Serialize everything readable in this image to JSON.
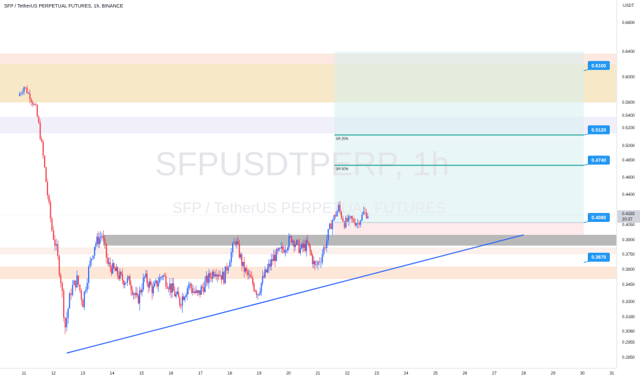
{
  "header": {
    "symbol_title": "SFP / TetherUS PERPETUAL FUTURES, 1h, BINANCE",
    "unit": "USDT"
  },
  "watermark": {
    "ticker": "SFPUSDTPERP, 1h",
    "name": "SFP / TetherUS PERPETUAL FUTURES"
  },
  "chart_data": {
    "type": "candlestick",
    "title": "SFP / TetherUS PERPETUAL FUTURES, 1h, BINANCE",
    "x_ticks": [
      "11",
      "12",
      "13",
      "14",
      "15",
      "16",
      "17",
      "18",
      "19",
      "20",
      "21",
      "22",
      "23",
      "24",
      "25",
      "26",
      "27",
      "28",
      "29",
      "30",
      "31"
    ],
    "y_ticks": [
      0.68,
      0.64,
      0.6,
      0.56,
      0.54,
      0.52,
      0.5,
      0.48,
      0.46,
      0.44,
      0.4192,
      0.405,
      0.39,
      0.375,
      0.36,
      0.345,
      0.33,
      0.318,
      0.306,
      0.2955,
      0.285
    ],
    "y_tick_labels": [
      "0.6800",
      "0.6400",
      "0.6000",
      "0.5600",
      "0.5400",
      "0.5200",
      "0.5000",
      "0.4800",
      "0.4600",
      "0.4400",
      "0.4192",
      "0.4050",
      "0.3900",
      "0.3750",
      "0.3600",
      "0.3450",
      "0.3300",
      "0.3180",
      "0.3060",
      "0.2955",
      "0.2850"
    ],
    "last_price": {
      "value": "0.4192",
      "countdown": "20:37"
    },
    "price_path": [
      {
        "day": 10.8,
        "price": 0.57
      },
      {
        "day": 11.0,
        "price": 0.585
      },
      {
        "day": 11.2,
        "price": 0.57
      },
      {
        "day": 11.4,
        "price": 0.55
      },
      {
        "day": 11.6,
        "price": 0.5
      },
      {
        "day": 11.8,
        "price": 0.44
      },
      {
        "day": 11.95,
        "price": 0.4
      },
      {
        "day": 12.1,
        "price": 0.38
      },
      {
        "day": 12.25,
        "price": 0.35
      },
      {
        "day": 12.4,
        "price": 0.31
      },
      {
        "day": 12.6,
        "price": 0.34
      },
      {
        "day": 12.8,
        "price": 0.35
      },
      {
        "day": 13.0,
        "price": 0.33
      },
      {
        "day": 13.2,
        "price": 0.36
      },
      {
        "day": 13.4,
        "price": 0.385
      },
      {
        "day": 13.65,
        "price": 0.395
      },
      {
        "day": 13.85,
        "price": 0.365
      },
      {
        "day": 14.1,
        "price": 0.358
      },
      {
        "day": 14.35,
        "price": 0.35
      },
      {
        "day": 14.6,
        "price": 0.348
      },
      {
        "day": 14.85,
        "price": 0.33
      },
      {
        "day": 15.1,
        "price": 0.352
      },
      {
        "day": 15.4,
        "price": 0.34
      },
      {
        "day": 15.7,
        "price": 0.355
      },
      {
        "day": 16.0,
        "price": 0.342
      },
      {
        "day": 16.3,
        "price": 0.33
      },
      {
        "day": 16.6,
        "price": 0.345
      },
      {
        "day": 16.9,
        "price": 0.335
      },
      {
        "day": 17.2,
        "price": 0.348
      },
      {
        "day": 17.5,
        "price": 0.36
      },
      {
        "day": 17.8,
        "price": 0.352
      },
      {
        "day": 18.0,
        "price": 0.372
      },
      {
        "day": 18.2,
        "price": 0.39
      },
      {
        "day": 18.45,
        "price": 0.362
      },
      {
        "day": 18.7,
        "price": 0.35
      },
      {
        "day": 18.95,
        "price": 0.338
      },
      {
        "day": 19.2,
        "price": 0.355
      },
      {
        "day": 19.5,
        "price": 0.372
      },
      {
        "day": 19.8,
        "price": 0.38
      },
      {
        "day": 20.1,
        "price": 0.392
      },
      {
        "day": 20.4,
        "price": 0.38
      },
      {
        "day": 20.65,
        "price": 0.385
      },
      {
        "day": 20.9,
        "price": 0.362
      },
      {
        "day": 21.1,
        "price": 0.372
      },
      {
        "day": 21.3,
        "price": 0.39
      },
      {
        "day": 21.5,
        "price": 0.412
      },
      {
        "day": 21.7,
        "price": 0.426
      },
      {
        "day": 21.9,
        "price": 0.408
      },
      {
        "day": 22.1,
        "price": 0.412
      },
      {
        "day": 22.35,
        "price": 0.408
      },
      {
        "day": 22.55,
        "price": 0.42
      },
      {
        "day": 22.7,
        "price": 0.4192
      }
    ],
    "support_resistance_zones": [
      {
        "from": 0.56,
        "to": 0.62,
        "color": "#f7e7c4"
      },
      {
        "from": 0.384,
        "to": 0.395,
        "color": "#b0b0b0"
      }
    ],
    "targets": [
      {
        "label": "0.6100",
        "value": 0.61
      },
      {
        "label": "0.5120",
        "value": 0.512
      },
      {
        "label": "0.4740",
        "value": 0.474
      },
      {
        "label": "0.4080",
        "value": 0.408
      },
      {
        "label": "0.3670",
        "value": 0.367
      }
    ],
    "annotations": [
      {
        "text": "SR 25%",
        "value": 0.512
      },
      {
        "text": "SR 50%",
        "value": 0.474
      }
    ],
    "trendline": {
      "from": {
        "day": 12.45,
        "price": 0.288
      },
      "to": {
        "day": 28.0,
        "price": 0.395
      }
    },
    "colors": {
      "up": "#2962ff",
      "down": "#f23645",
      "target_box": "#2196f3",
      "trendline": "#2962ff",
      "level_line": "#26a69a"
    }
  }
}
